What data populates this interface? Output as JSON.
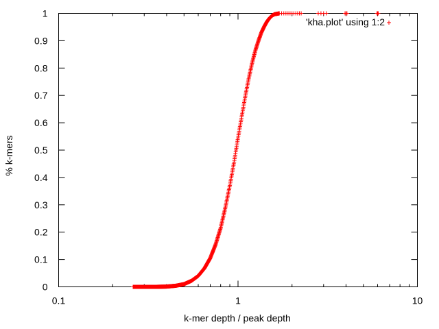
{
  "chart_data": {
    "type": "scatter",
    "title": "",
    "xlabel": "k-mer depth / peak depth",
    "ylabel": "% k-mers",
    "xscale": "log",
    "xlim": [
      0.1,
      10
    ],
    "ylim": [
      0,
      1
    ],
    "grid": false,
    "legend_position": "top-right",
    "x_ticks": [
      {
        "value": 0.1,
        "label": "0.1"
      },
      {
        "value": 1,
        "label": "1"
      },
      {
        "value": 10,
        "label": "10"
      }
    ],
    "y_ticks": [
      {
        "value": 0,
        "label": "0"
      },
      {
        "value": 0.1,
        "label": "0.1"
      },
      {
        "value": 0.2,
        "label": "0.2"
      },
      {
        "value": 0.3,
        "label": "0.3"
      },
      {
        "value": 0.4,
        "label": "0.4"
      },
      {
        "value": 0.5,
        "label": "0.5"
      },
      {
        "value": 0.6,
        "label": "0.6"
      },
      {
        "value": 0.7,
        "label": "0.7"
      },
      {
        "value": 0.8,
        "label": "0.8"
      },
      {
        "value": 0.9,
        "label": "0.9"
      },
      {
        "value": 1,
        "label": "1"
      }
    ],
    "series": [
      {
        "name": "'kha.plot' using 1:2",
        "color": "#ff0000",
        "marker": "plus",
        "curve": "sigmoid (cumulative) from x≈0.26 to x≈1.6, then flat at 1 out to x≈6",
        "x": [
          0.26,
          0.3,
          0.35,
          0.4,
          0.45,
          0.5,
          0.55,
          0.6,
          0.65,
          0.7,
          0.75,
          0.8,
          0.85,
          0.9,
          0.95,
          1.0,
          1.05,
          1.1,
          1.15,
          1.2,
          1.25,
          1.3,
          1.35,
          1.4,
          1.45,
          1.5,
          1.55,
          1.6,
          1.7,
          1.8,
          2.0,
          2.2,
          2.8,
          3.1,
          4.0,
          6.0
        ],
        "y": [
          0.0,
          0.0,
          0.0,
          0.001,
          0.004,
          0.01,
          0.022,
          0.04,
          0.068,
          0.105,
          0.155,
          0.215,
          0.29,
          0.37,
          0.455,
          0.545,
          0.625,
          0.7,
          0.765,
          0.82,
          0.865,
          0.9,
          0.93,
          0.952,
          0.97,
          0.983,
          0.992,
          0.997,
          1.0,
          1.0,
          1.0,
          1.0,
          1.0,
          1.0,
          1.0,
          1.0
        ]
      }
    ]
  }
}
